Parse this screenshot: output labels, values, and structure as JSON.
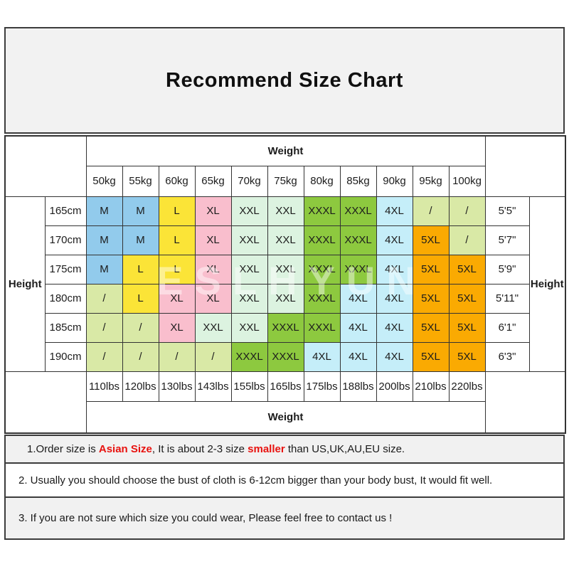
{
  "title": "Recommend Size Chart",
  "colors": {
    "border": "#333333",
    "panel_bg": "#f2f2f2",
    "red_accent": "#e8120f",
    "size_colors": {
      "M": "#92CBEC",
      "L": "#FBE437",
      "XL": "#F9BECD",
      "XXL": "#DCF3E0",
      "XXXL": "#8DC93F",
      "4XL": "#C5EEF9",
      "5XL": "#FAAA02",
      "/": "#D9E9A6"
    }
  },
  "watermark": "ESLHYUN",
  "chart_data": {
    "type": "table",
    "title": "Recommend Size Chart",
    "weight_header_top": "Weight",
    "weight_header_bottom": "Weight",
    "height_label_left": "Height",
    "height_label_right": "Height",
    "weight_kg": [
      "50kg",
      "55kg",
      "60kg",
      "65kg",
      "70kg",
      "75kg",
      "80kg",
      "85kg",
      "90kg",
      "95kg",
      "100kg"
    ],
    "weight_lbs": [
      "110lbs",
      "120lbs",
      "130lbs",
      "143lbs",
      "155lbs",
      "165lbs",
      "175lbs",
      "188lbs",
      "200lbs",
      "210lbs",
      "220lbs"
    ],
    "rows": [
      {
        "cm": "165cm",
        "imperial": "5'5\"",
        "sizes": [
          "M",
          "M",
          "L",
          "XL",
          "XXL",
          "XXL",
          "XXXL",
          "XXXL",
          "4XL",
          "/",
          "/"
        ]
      },
      {
        "cm": "170cm",
        "imperial": "5'7\"",
        "sizes": [
          "M",
          "M",
          "L",
          "XL",
          "XXL",
          "XXL",
          "XXXL",
          "XXXL",
          "4XL",
          "5XL",
          "/"
        ]
      },
      {
        "cm": "175cm",
        "imperial": "5'9\"",
        "sizes": [
          "M",
          "L",
          "L",
          "XL",
          "XXL",
          "XXL",
          "XXXL",
          "XXXL",
          "4XL",
          "5XL",
          "5XL"
        ]
      },
      {
        "cm": "180cm",
        "imperial": "5'11\"",
        "sizes": [
          "/",
          "L",
          "XL",
          "XL",
          "XXL",
          "XXL",
          "XXXL",
          "4XL",
          "4XL",
          "5XL",
          "5XL"
        ]
      },
      {
        "cm": "185cm",
        "imperial": "6'1\"",
        "sizes": [
          "/",
          "/",
          "XL",
          "XXL",
          "XXL",
          "XXXL",
          "XXXL",
          "4XL",
          "4XL",
          "5XL",
          "5XL"
        ]
      },
      {
        "cm": "190cm",
        "imperial": "6'3\"",
        "sizes": [
          "/",
          "/",
          "/",
          "/",
          "XXXL",
          "XXXL",
          "4XL",
          "4XL",
          "4XL",
          "5XL",
          "5XL"
        ]
      }
    ]
  },
  "notes": {
    "n1a": "1.Order size is ",
    "n1b": "Asian Size",
    "n1c": ", It is about 2-3 size ",
    "n1d": "smaller",
    "n1e": " than US,UK,AU,EU size.",
    "n2": "2. Usually you should choose the bust of cloth is 6-12cm bigger than your body bust, It would fit well.",
    "n3": "3. If you are not sure which size you could wear, Please feel free to contact us !"
  }
}
